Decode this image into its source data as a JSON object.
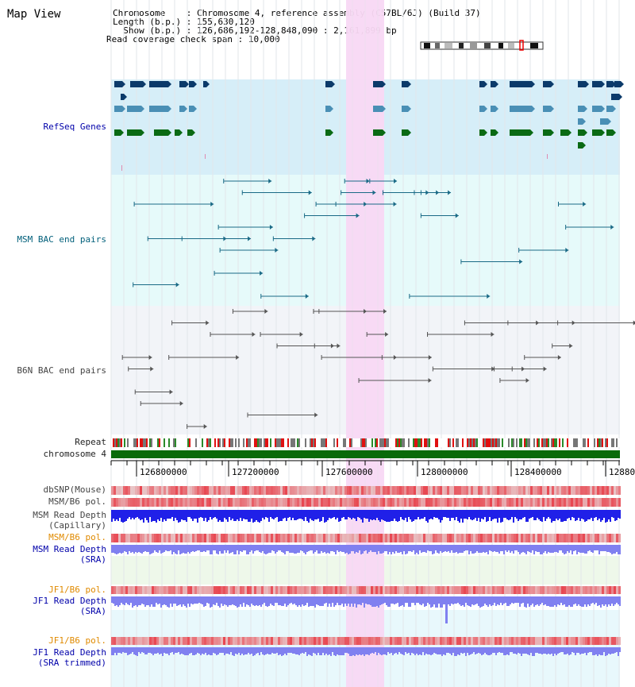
{
  "title": "Map View",
  "header": {
    "chromosome_label": "Chromosome",
    "chromosome_value": "Chromosome 4, reference assembly (C57BL/6J) (Build 37)",
    "length_label": "Length (b.p.)",
    "length_value": "155,630,120",
    "show_label": "Show (b.p.)",
    "show_value": "126,686,192-128,848,090 : 2,161,899 bp",
    "coverage_label": "Read coverage check span",
    "coverage_value": "10,000"
  },
  "tracks": {
    "refseq": "RefSeq Genes",
    "msm_bac": "MSM BAC end pairs",
    "b6n_bac": "B6N BAC end pairs",
    "repeat": "Repeat",
    "chromosome": "chromosome 4",
    "dbsnp": "dbSNP(Mouse)",
    "msm_b6_pol": "MSM/B6 pol.",
    "msm_read_depth_cap_1": "MSM Read Depth",
    "msm_read_depth_cap_2": "(Capillary)",
    "msm_b6_pol_2": "MSM/B6 pol.",
    "msm_read_depth_sra_1": "MSM Read Depth",
    "msm_read_depth_sra_2": "(SRA)",
    "jf1_b6_pol": "JF1/B6 pol.",
    "jf1_read_depth_sra_1": "JF1 Read Depth",
    "jf1_read_depth_sra_2": "(SRA)",
    "jf1_b6_pol_2": "JF1/B6 pol.",
    "jf1_read_depth_trim_1": "JF1 Read Depth",
    "jf1_read_depth_trim_2": "(SRA trimmed)"
  },
  "axis": {
    "ticks": [
      "126800000",
      "127200000",
      "127600000",
      "128000000",
      "128400000",
      "12880"
    ]
  },
  "colors": {
    "highlight": "#f8d8f4",
    "refseq_bg": "#d6eef8",
    "msm_bg": "#e6fafa",
    "b6n_bg": "#f2f4f8",
    "gene_navy": "#0b3a6a",
    "gene_steel": "#4a8fb5",
    "gene_green": "#0a6a14",
    "msm_line": "#1a6a86",
    "b6n_line": "#555555",
    "chrom_bar": "#0a6a0a",
    "snp_red": "#e8323a",
    "depth_blue": "#2020e8",
    "depth_light": "#8080f0"
  }
}
